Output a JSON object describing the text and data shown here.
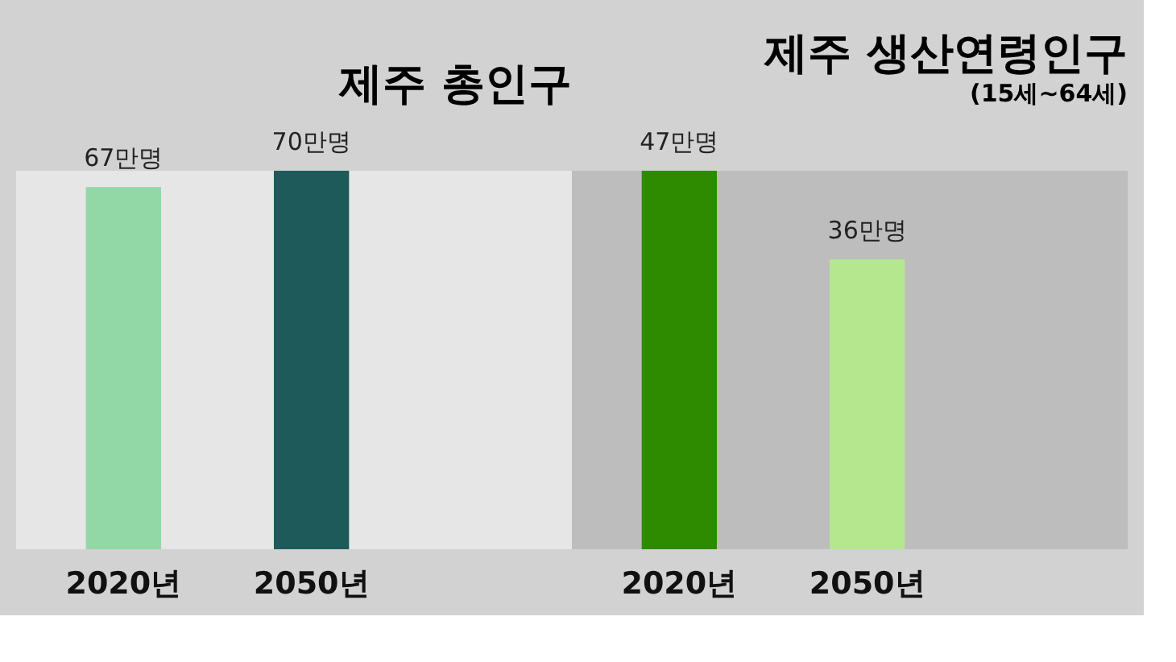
{
  "chart_data": [
    {
      "type": "bar",
      "title": "제주 총인구",
      "categories": [
        "2020년",
        "2050년"
      ],
      "values": [
        67,
        70
      ],
      "colors": [
        "#92d7a6",
        "#1e5a5a"
      ],
      "value_labels": [
        "67만명",
        "70만명"
      ]
    },
    {
      "type": "bar",
      "title": "제주 생산연령인구",
      "subtitle": "(15세~64세)",
      "categories": [
        "2020년",
        "2050년"
      ],
      "values": [
        47,
        36
      ],
      "colors": [
        "#2e8b00",
        "#b5e78f"
      ],
      "value_labels": [
        "47만명",
        "36만명"
      ]
    }
  ]
}
